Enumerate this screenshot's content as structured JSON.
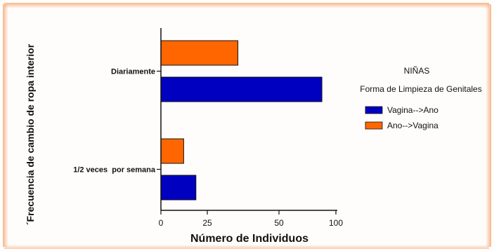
{
  "chart_data": {
    "type": "bar",
    "orientation": "horizontal",
    "categories": [
      "Diariamente",
      "1/2 veces  por semana"
    ],
    "series": [
      {
        "name": "Vagina-->Ano",
        "values": [
          92,
          20
        ],
        "color": "#0000c0"
      },
      {
        "name": "Ano-->Vagina",
        "values": [
          44,
          13
        ],
        "color": "#ff6600"
      }
    ],
    "xlabel": "Número de Individuos",
    "ylabel": "´Frecuencia de cambio de ropa interior",
    "xlim": [
      0,
      100
    ],
    "xticks": [
      "0",
      "25",
      "50",
      "100"
    ],
    "grid": false,
    "legend": {
      "heading": "NIÑAS",
      "title": "Forma de Limpieza de Genitales",
      "placement": "right"
    }
  }
}
